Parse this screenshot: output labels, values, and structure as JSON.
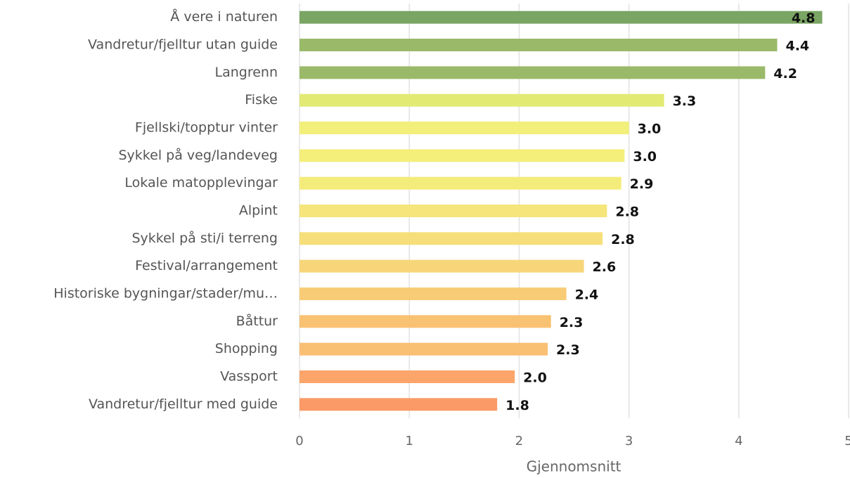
{
  "chart_data": {
    "type": "barh",
    "x_label": "Gjennomsnitt",
    "categories": [
      "Å vere i naturen",
      "Vandretur/fjelltur utan guide",
      "Langrenn",
      "Fiske",
      "Fjellski/topptur vinter",
      "Sykkel på veg/landeveg",
      "Lokale matopplevingar",
      "Alpint",
      "Sykkel på sti/i terreng",
      "Festival/arrangement",
      "Historiske bygningar/stader/mu…",
      "Båttur",
      "Shopping",
      "Vassport",
      "Vandretur/fjelltur med guide"
    ],
    "values": [
      4.76,
      4.35,
      4.24,
      3.32,
      3.0,
      2.96,
      2.93,
      2.8,
      2.76,
      2.59,
      2.43,
      2.29,
      2.26,
      1.96,
      1.8
    ],
    "value_labels": [
      "4.8",
      "4.4",
      "4.2",
      "3.3",
      "3.0",
      "3.0",
      "2.9",
      "2.8",
      "2.8",
      "2.6",
      "2.4",
      "2.3",
      "2.3",
      "2.0",
      "1.8"
    ],
    "colors": [
      "#7aa563",
      "#9aba6a",
      "#9aba6a",
      "#e2ea74",
      "#f2ef7a",
      "#f4ee7a",
      "#f4ec7a",
      "#f5e57a",
      "#f6df7a",
      "#f7d67a",
      "#f8cc76",
      "#f9c172",
      "#f9bf72",
      "#fba56a",
      "#fb9a66"
    ],
    "xlim": [
      0,
      5
    ],
    "xticks": [
      0,
      1,
      2,
      3,
      4,
      5
    ],
    "grid": true
  }
}
